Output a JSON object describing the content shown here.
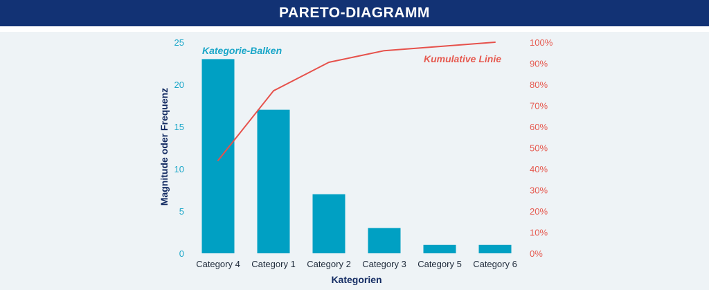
{
  "header": {
    "title": "PARETO-DIAGRAMM"
  },
  "colors": {
    "header_bg": "#123274",
    "bars": "#00a0c3",
    "line": "#e6514b",
    "panel_bg": "#eef3f6"
  },
  "chart_data": {
    "type": "bar",
    "title": "",
    "xlabel": "Kategorien",
    "ylabel": "Magnitude oder Frequenz",
    "categories": [
      "Category 4",
      "Category 1",
      "Category 2",
      "Category 3",
      "Category 5",
      "Category 6"
    ],
    "series": [
      {
        "name": "Kategorie-Balken",
        "type": "bar",
        "axis": "left",
        "values": [
          23,
          17,
          7,
          3,
          1,
          1
        ]
      },
      {
        "name": "Kumulative Linie",
        "type": "line",
        "axis": "right",
        "values": [
          44,
          77,
          90.5,
          96,
          98,
          100
        ]
      }
    ],
    "ylim": [
      0,
      25
    ],
    "y_ticks": [
      "0",
      "5",
      "10",
      "15",
      "20",
      "25"
    ],
    "y2lim": [
      0,
      100
    ],
    "y2_ticks": [
      "0%",
      "10%",
      "20%",
      "30%",
      "40%",
      "50%",
      "60%",
      "70%",
      "80%",
      "90%",
      "100%"
    ],
    "grid": false,
    "legend": "none"
  }
}
